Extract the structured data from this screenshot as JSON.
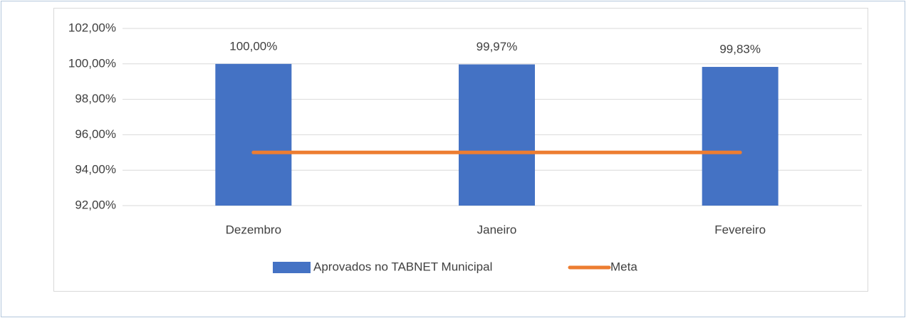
{
  "chart_data": {
    "type": "bar",
    "categories": [
      "Dezembro",
      "Janeiro",
      "Fevereiro"
    ],
    "series": [
      {
        "name": "Aprovados no TABNET Municipal",
        "type": "bar",
        "color": "#4472c4",
        "values": [
          100,
          99.97,
          99.83
        ],
        "value_labels": [
          "100,00%",
          "99,97%",
          "99,83%"
        ]
      },
      {
        "name": "Meta",
        "type": "line",
        "color": "#ed7d31",
        "values": [
          95,
          95,
          95
        ]
      }
    ],
    "ylim": [
      92,
      102
    ],
    "yticks": [
      {
        "value": 92,
        "label": "92,00%"
      },
      {
        "value": 94,
        "label": "94,00%"
      },
      {
        "value": 96,
        "label": "96,00%"
      },
      {
        "value": 98,
        "label": "98,00%"
      },
      {
        "value": 100,
        "label": "100,00%"
      },
      {
        "value": 102,
        "label": "102,00%"
      }
    ],
    "grid": true,
    "legend": "bottom"
  }
}
